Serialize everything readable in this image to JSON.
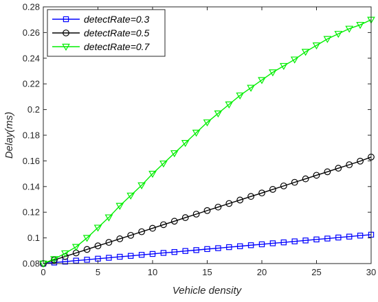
{
  "chart_data": {
    "type": "line",
    "title": "",
    "xlabel": "Vehicle density",
    "ylabel": "Delay(ms)",
    "xlim": [
      0,
      30
    ],
    "ylim": [
      0.08,
      0.28
    ],
    "xticks": [
      0,
      5,
      10,
      15,
      20,
      25,
      30
    ],
    "yticks": [
      0.08,
      0.1,
      0.12,
      0.14,
      0.16,
      0.18,
      0.2,
      0.22,
      0.24,
      0.26,
      0.28
    ],
    "ytick_labels": [
      "0.08",
      "0.1",
      "0.12",
      "0.14",
      "0.16",
      "0.18",
      "0.2",
      "0.22",
      "0.24",
      "0.26",
      "0.28"
    ],
    "grid": false,
    "legend_position": "top-left",
    "x": [
      0,
      1,
      2,
      3,
      4,
      5,
      6,
      7,
      8,
      9,
      10,
      11,
      12,
      13,
      14,
      15,
      16,
      17,
      18,
      19,
      20,
      21,
      22,
      23,
      24,
      25,
      26,
      27,
      28,
      29,
      30
    ],
    "series": [
      {
        "name": "detectRate=0.3",
        "color": "#0000ff",
        "marker": "square",
        "values": [
          0.08,
          0.0808,
          0.0815,
          0.0823,
          0.083,
          0.0838,
          0.0845,
          0.0853,
          0.086,
          0.0868,
          0.0875,
          0.0883,
          0.089,
          0.0898,
          0.0905,
          0.0913,
          0.092,
          0.0928,
          0.0935,
          0.0943,
          0.095,
          0.0958,
          0.0965,
          0.0973,
          0.098,
          0.0988,
          0.0995,
          0.1003,
          0.101,
          0.1018,
          0.1025
        ]
      },
      {
        "name": "detectRate=0.5",
        "color": "#000000",
        "marker": "circle",
        "values": [
          0.08,
          0.0828,
          0.0855,
          0.0883,
          0.091,
          0.0938,
          0.0965,
          0.0993,
          0.102,
          0.1048,
          0.1075,
          0.1103,
          0.113,
          0.1158,
          0.1185,
          0.1213,
          0.124,
          0.1268,
          0.1295,
          0.1323,
          0.135,
          0.1378,
          0.1405,
          0.1433,
          0.146,
          0.1488,
          0.1515,
          0.1543,
          0.157,
          0.1598,
          0.163
        ]
      },
      {
        "name": "detectRate=0.7",
        "color": "#00ee00",
        "marker": "triangle-down",
        "values": [
          0.08,
          0.0835,
          0.088,
          0.093,
          0.1,
          0.108,
          0.116,
          0.125,
          0.133,
          0.141,
          0.15,
          0.158,
          0.166,
          0.174,
          0.182,
          0.19,
          0.197,
          0.204,
          0.211,
          0.217,
          0.223,
          0.229,
          0.234,
          0.239,
          0.245,
          0.25,
          0.255,
          0.259,
          0.263,
          0.266,
          0.27
        ]
      }
    ]
  }
}
